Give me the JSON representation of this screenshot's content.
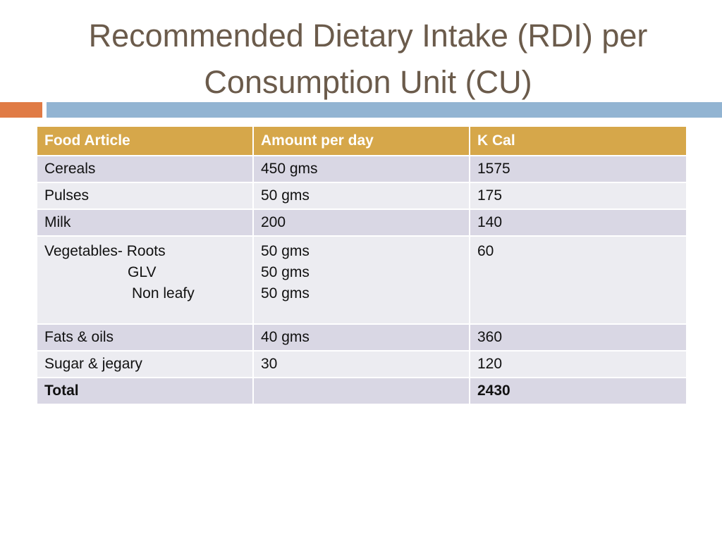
{
  "slide": {
    "title_line1": "Recommended Dietary Intake (RDI) per",
    "title_line2": "Consumption Unit (CU)"
  },
  "colors": {
    "title": "#6b5b4b",
    "accent_orange": "#e07b45",
    "accent_blue": "#92b4d2",
    "header_bg": "#d6a74a",
    "row_odd": "#d9d7e4",
    "row_even": "#ececf1"
  },
  "table": {
    "headers": [
      "Food Article",
      "Amount per day",
      "K Cal"
    ],
    "rows": [
      {
        "food": "Cereals",
        "amount": "450 gms",
        "kcal": "1575"
      },
      {
        "food": "Pulses",
        "amount": "50 gms",
        "kcal": "175"
      },
      {
        "food": "Milk",
        "amount": "200",
        "kcal": "140"
      },
      {
        "food_lines": [
          "Vegetables- Roots",
          "GLV",
          "Non leafy"
        ],
        "amount_lines": [
          "50 gms",
          "50 gms",
          "50 gms"
        ],
        "kcal": "60"
      },
      {
        "food": "Fats & oils",
        "amount": "40 gms",
        "kcal": "360"
      },
      {
        "food": "Sugar & jegary",
        "amount": "30",
        "kcal": "120"
      },
      {
        "food": "Total",
        "amount": "",
        "kcal": "2430"
      }
    ]
  }
}
